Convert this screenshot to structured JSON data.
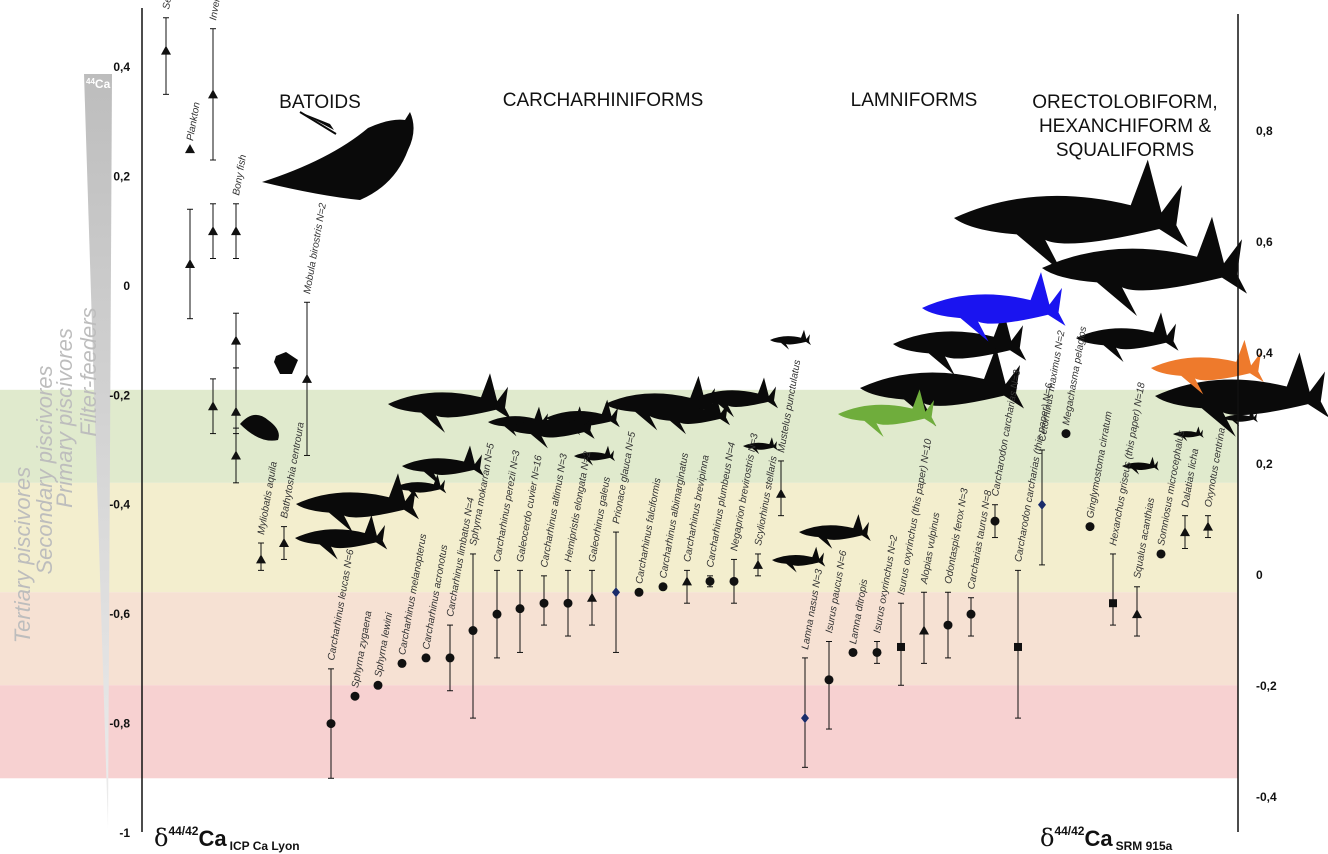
{
  "chart_data": {
    "type": "scatter",
    "left_axis": {
      "ylim": [
        -1.0,
        0.5
      ],
      "ticks": [
        "0,4",
        "0,2",
        "0",
        "-0,2",
        "-0,4",
        "-0,6",
        "-0,8",
        "-1"
      ],
      "tick_values": [
        0.4,
        0.2,
        0,
        -0.2,
        -0.4,
        -0.6,
        -0.8,
        -1.0
      ]
    },
    "right_axis": {
      "ticks": [
        "0,8",
        "0,6",
        "0,4",
        "0,2",
        "0",
        "-0,2",
        "-0,4"
      ],
      "tick_values": [
        0.8,
        0.6,
        0.4,
        0.2,
        0,
        -0.2,
        -0.4
      ]
    },
    "y_label_left": {
      "prefix": "δ",
      "sup": "44/42",
      "main": "Ca",
      "sub": "ICP Ca Lyon"
    },
    "y_label_right": {
      "prefix": "δ",
      "sup": "44/42",
      "main": "Ca",
      "sub": "SRM 915a"
    },
    "gradient_label": {
      "sup": "44",
      "main": "Ca"
    },
    "groups": [
      {
        "lines": [
          "BATOIDS"
        ]
      },
      {
        "lines": [
          "CARCHARHINIFORMS"
        ]
      },
      {
        "lines": [
          "LAMNIFORMS"
        ]
      },
      {
        "lines": [
          "ORECTOLOBIFORM,",
          "HEXANCHIFORM &",
          "SQUALIFORMS"
        ]
      }
    ],
    "zones": [
      {
        "label": "Filter-feeders",
        "from": -0.19,
        "to": -0.36,
        "color": "#dbe6c4"
      },
      {
        "label": "Primary piscivores",
        "from": -0.36,
        "to": -0.56,
        "color": "#f1ebc6"
      },
      {
        "label": "Secondary piscivores",
        "from": -0.56,
        "to": -0.73,
        "color": "#f5dccb"
      },
      {
        "label": "Tertiary piscivores",
        "from": -0.73,
        "to": -0.9,
        "color": "#f6c9c9"
      }
    ],
    "points": [
      {
        "label": "Seawater",
        "marker": "triangle",
        "y": 0.43,
        "lo": 0.35,
        "hi": 0.49
      },
      {
        "label": "Plankton",
        "marker": "triangle",
        "y": 0.25,
        "lo": 0.25,
        "hi": 0.25
      },
      {
        "label": "Plankton",
        "marker": "triangle",
        "y": 0.04,
        "lo": -0.06,
        "hi": 0.14
      },
      {
        "label": "Invertebrates",
        "marker": "triangle",
        "y": 0.35,
        "lo": 0.23,
        "hi": 0.47
      },
      {
        "label": "Invertebrates",
        "marker": "triangle",
        "y": 0.1,
        "lo": 0.05,
        "hi": 0.15
      },
      {
        "label": "Invertebrates",
        "marker": "triangle",
        "y": -0.22,
        "lo": -0.27,
        "hi": -0.17
      },
      {
        "label": "Bony fish",
        "marker": "triangle",
        "y": 0.1,
        "lo": 0.05,
        "hi": 0.15
      },
      {
        "label": "Bony fish",
        "marker": "triangle",
        "y": -0.1,
        "lo": -0.15,
        "hi": -0.05
      },
      {
        "label": "Bony fish",
        "marker": "triangle",
        "y": -0.23,
        "lo": -0.27,
        "hi": -0.15
      },
      {
        "label": "Bony fish",
        "marker": "triangle",
        "y": -0.31,
        "lo": -0.36,
        "hi": -0.26
      },
      {
        "label": "Myliobatis aquila",
        "marker": "triangle",
        "y": -0.5,
        "lo": -0.52,
        "hi": -0.47
      },
      {
        "label": "Bathytoshia centroura",
        "marker": "triangle",
        "y": -0.47,
        "lo": -0.5,
        "hi": -0.44
      },
      {
        "label": "Mobula birostris N=2",
        "marker": "triangle",
        "y": -0.17,
        "lo": -0.31,
        "hi": -0.03
      },
      {
        "label": "Carcharhinus leucas N=6",
        "marker": "circle",
        "y": -0.8,
        "lo": -0.9,
        "hi": -0.7
      },
      {
        "label": "Sphyrna zygaena",
        "marker": "circle",
        "y": -0.75,
        "lo": -0.75,
        "hi": -0.75
      },
      {
        "label": "Sphyrna lewini",
        "marker": "circle",
        "y": -0.73,
        "lo": -0.73,
        "hi": -0.73
      },
      {
        "label": "Carcharhinus melanopterus",
        "marker": "circle",
        "y": -0.69,
        "lo": -0.69,
        "hi": -0.69
      },
      {
        "label": "Carcharhinus acronotus",
        "marker": "circle",
        "y": -0.68,
        "lo": -0.68,
        "hi": -0.68
      },
      {
        "label": "Carcharhinus limbatus N=4",
        "marker": "circle",
        "y": -0.68,
        "lo": -0.74,
        "hi": -0.62
      },
      {
        "label": "Sphyrna mokarran N=5",
        "marker": "circle",
        "y": -0.63,
        "lo": -0.79,
        "hi": -0.49
      },
      {
        "label": "Carcharhinus perezii N=3",
        "marker": "circle",
        "y": -0.6,
        "lo": -0.68,
        "hi": -0.52
      },
      {
        "label": "Galeocerdo cuvier N=16",
        "marker": "circle",
        "y": -0.59,
        "lo": -0.67,
        "hi": -0.52
      },
      {
        "label": "Carcharhinus altimus N=3",
        "marker": "circle",
        "y": -0.58,
        "lo": -0.62,
        "hi": -0.53
      },
      {
        "label": "Hemipristis elongata N=2",
        "marker": "circle",
        "y": -0.58,
        "lo": -0.64,
        "hi": -0.52
      },
      {
        "label": "Galeorhinus galeus",
        "marker": "triangle",
        "y": -0.57,
        "lo": -0.62,
        "hi": -0.52
      },
      {
        "label": "Prionace glauca N=5",
        "marker": "diamond",
        "y": -0.56,
        "lo": -0.67,
        "hi": -0.45
      },
      {
        "label": "Carcharhinus falciformis",
        "marker": "circle",
        "y": -0.56,
        "lo": -0.56,
        "hi": -0.56
      },
      {
        "label": "Carcharhinus albimarginatus",
        "marker": "circle",
        "y": -0.55,
        "lo": -0.55,
        "hi": -0.55
      },
      {
        "label": "Carcharhinus brevipinna",
        "marker": "triangle",
        "y": -0.54,
        "lo": -0.58,
        "hi": -0.52
      },
      {
        "label": "Carcharhinus plumbeus N=4",
        "marker": "circle",
        "y": -0.54,
        "lo": -0.55,
        "hi": -0.53
      },
      {
        "label": "Negaprion brevirostris N=3",
        "marker": "circle",
        "y": -0.54,
        "lo": -0.58,
        "hi": -0.5
      },
      {
        "label": "Scyliorhinus stellaris",
        "marker": "triangle",
        "y": -0.51,
        "lo": -0.53,
        "hi": -0.49
      },
      {
        "label": "Mustelus punctulatus",
        "marker": "triangle",
        "y": -0.38,
        "lo": -0.42,
        "hi": -0.32
      },
      {
        "label": "Lamna nasus N=3",
        "marker": "diamond",
        "y": -0.79,
        "lo": -0.88,
        "hi": -0.68
      },
      {
        "label": "Isurus paucus N=6",
        "marker": "circle",
        "y": -0.72,
        "lo": -0.81,
        "hi": -0.65
      },
      {
        "label": "Lamna ditropis",
        "marker": "circle",
        "y": -0.67,
        "lo": -0.67,
        "hi": -0.67
      },
      {
        "label": "Isurus oxyrinchus N=2",
        "marker": "circle",
        "y": -0.67,
        "lo": -0.69,
        "hi": -0.65
      },
      {
        "label": "Isurus oxyrinchus (this paper) N=10",
        "marker": "square",
        "y": -0.66,
        "lo": -0.73,
        "hi": -0.58
      },
      {
        "label": "Alopias vulpinus",
        "marker": "triangle",
        "y": -0.63,
        "lo": -0.69,
        "hi": -0.56
      },
      {
        "label": "Odontaspis ferox N=3",
        "marker": "circle",
        "y": -0.62,
        "lo": -0.68,
        "hi": -0.56
      },
      {
        "label": "Carcharias taurus N=8",
        "marker": "circle",
        "y": -0.6,
        "lo": -0.64,
        "hi": -0.57
      },
      {
        "label": "Carcharodon carcharias N=3",
        "marker": "circle",
        "y": -0.43,
        "lo": -0.46,
        "hi": -0.4
      },
      {
        "label": "Carcharodon carcharias (this paper) N=6",
        "marker": "square",
        "y": -0.66,
        "lo": -0.79,
        "hi": -0.52
      },
      {
        "label": "Cetorhinus maximus N=2",
        "marker": "diamond",
        "y": -0.4,
        "lo": -0.51,
        "hi": -0.3
      },
      {
        "label": "Megachasma pelagios",
        "marker": "circle",
        "y": -0.27,
        "lo": -0.27,
        "hi": -0.27
      },
      {
        "label": "Ginglymostoma cirratum",
        "marker": "circle",
        "y": -0.44,
        "lo": -0.44,
        "hi": -0.44
      },
      {
        "label": "Hexanchus griseus (this paper) N=18",
        "marker": "square",
        "y": -0.58,
        "lo": -0.62,
        "hi": -0.49
      },
      {
        "label": "Squalus acanthias",
        "marker": "triangle",
        "y": -0.6,
        "lo": -0.64,
        "hi": -0.55
      },
      {
        "label": "Somniosus microcephalus",
        "marker": "circle",
        "y": -0.49,
        "lo": -0.49,
        "hi": -0.49
      },
      {
        "label": "Dalatias licha",
        "marker": "triangle",
        "y": -0.45,
        "lo": -0.48,
        "hi": -0.42
      },
      {
        "label": "Oxynotus centrina",
        "marker": "triangle",
        "y": -0.44,
        "lo": -0.46,
        "hi": -0.42
      }
    ],
    "silhouette_colors": {
      "default": "#0a0a0a",
      "blue": "#1a14f0",
      "orange": "#ee7a2c",
      "green": "#6fad3c"
    }
  }
}
